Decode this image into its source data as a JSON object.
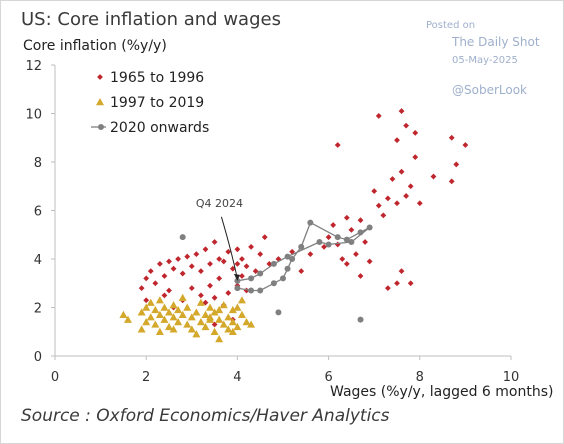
{
  "title": "US: Core inflation and wages",
  "source": "Source : Oxford Economics/Haver Analytics",
  "watermark": {
    "posted_on": "Posted on",
    "site": "The Daily Shot",
    "date": "05-May-2025",
    "handle": "@SoberLook"
  },
  "colors": {
    "series_1965_1996": "#c0262d",
    "series_1997_2019": "#d4a82a",
    "series_2020": "#808080",
    "axis": "#bfbfbf"
  },
  "chart_data": {
    "type": "scatter",
    "title": "US: Core inflation and wages",
    "xlabel": "Wages (%y/y, lagged 6 months)",
    "ylabel": "Core inflation (%y/y)",
    "xlim": [
      0,
      10
    ],
    "ylim": [
      0,
      12
    ],
    "xticks": [
      0,
      2,
      4,
      6,
      8,
      10
    ],
    "yticks": [
      0,
      2,
      4,
      6,
      8,
      10,
      12
    ],
    "grid": false,
    "legend_position": "top-left",
    "annotation": {
      "text": "Q4 2024",
      "target": [
        4.0,
        3.1
      ]
    },
    "series": [
      {
        "name": "1965 to 1996",
        "marker": "diamond",
        "points": [
          [
            1.9,
            2.8
          ],
          [
            2.0,
            3.2
          ],
          [
            2.0,
            2.3
          ],
          [
            2.1,
            3.5
          ],
          [
            2.2,
            3.0
          ],
          [
            2.3,
            3.8
          ],
          [
            2.4,
            3.3
          ],
          [
            2.4,
            2.5
          ],
          [
            2.5,
            2.7
          ],
          [
            2.5,
            3.9
          ],
          [
            2.6,
            3.6
          ],
          [
            2.6,
            2.0
          ],
          [
            2.7,
            4.0
          ],
          [
            2.8,
            3.4
          ],
          [
            2.8,
            2.3
          ],
          [
            2.9,
            4.1
          ],
          [
            3.0,
            3.7
          ],
          [
            3.0,
            2.8
          ],
          [
            3.1,
            4.2
          ],
          [
            3.2,
            2.5
          ],
          [
            3.2,
            3.5
          ],
          [
            3.3,
            4.4
          ],
          [
            3.3,
            2.2
          ],
          [
            3.4,
            2.9
          ],
          [
            3.4,
            3.8
          ],
          [
            3.5,
            1.3
          ],
          [
            3.5,
            2.4
          ],
          [
            3.5,
            4.7
          ],
          [
            3.6,
            4.0
          ],
          [
            3.6,
            3.2
          ],
          [
            3.7,
            2.1
          ],
          [
            3.7,
            3.9
          ],
          [
            3.8,
            4.3
          ],
          [
            3.8,
            2.6
          ],
          [
            3.9,
            3.6
          ],
          [
            3.9,
            1.5
          ],
          [
            4.0,
            4.4
          ],
          [
            4.0,
            3.8
          ],
          [
            4.0,
            2.9
          ],
          [
            4.1,
            3.3
          ],
          [
            4.1,
            4.0
          ],
          [
            4.2,
            2.7
          ],
          [
            4.2,
            3.7
          ],
          [
            4.3,
            4.5
          ],
          [
            4.4,
            3.5
          ],
          [
            4.5,
            4.2
          ],
          [
            4.6,
            4.9
          ],
          [
            4.7,
            3.8
          ],
          [
            4.9,
            4.0
          ],
          [
            5.2,
            4.3
          ],
          [
            5.4,
            3.5
          ],
          [
            5.6,
            4.2
          ],
          [
            5.9,
            4.5
          ],
          [
            6.0,
            4.9
          ],
          [
            6.1,
            5.4
          ],
          [
            6.2,
            4.6
          ],
          [
            6.3,
            4.0
          ],
          [
            6.4,
            5.7
          ],
          [
            6.5,
            5.2
          ],
          [
            6.6,
            4.2
          ],
          [
            6.7,
            5.6
          ],
          [
            6.8,
            4.7
          ],
          [
            6.9,
            3.9
          ],
          [
            7.0,
            6.8
          ],
          [
            7.1,
            6.2
          ],
          [
            7.2,
            5.8
          ],
          [
            7.3,
            6.5
          ],
          [
            7.4,
            7.3
          ],
          [
            7.5,
            6.3
          ],
          [
            7.6,
            7.6
          ],
          [
            7.7,
            6.6
          ],
          [
            7.8,
            7.0
          ],
          [
            7.9,
            8.2
          ],
          [
            7.1,
            9.9
          ],
          [
            7.6,
            10.1
          ],
          [
            7.7,
            9.5
          ],
          [
            7.9,
            9.2
          ],
          [
            7.5,
            8.9
          ],
          [
            8.3,
            7.4
          ],
          [
            8.7,
            9.0
          ],
          [
            9.0,
            8.7
          ],
          [
            8.8,
            7.9
          ],
          [
            6.2,
            8.7
          ],
          [
            6.7,
            3.3
          ],
          [
            7.3,
            2.8
          ],
          [
            7.5,
            3.0
          ],
          [
            7.6,
            3.5
          ],
          [
            7.8,
            3.0
          ],
          [
            8.0,
            6.3
          ],
          [
            8.7,
            7.2
          ],
          [
            6.4,
            3.8
          ]
        ]
      },
      {
        "name": "1997 to 2019",
        "marker": "triangle",
        "points": [
          [
            1.5,
            1.7
          ],
          [
            1.6,
            1.5
          ],
          [
            1.9,
            1.8
          ],
          [
            2.0,
            2.0
          ],
          [
            2.0,
            1.4
          ],
          [
            2.1,
            1.6
          ],
          [
            2.1,
            2.2
          ],
          [
            2.2,
            1.9
          ],
          [
            2.2,
            1.3
          ],
          [
            2.3,
            1.7
          ],
          [
            2.3,
            2.3
          ],
          [
            2.4,
            1.5
          ],
          [
            2.4,
            2.0
          ],
          [
            2.5,
            1.8
          ],
          [
            2.5,
            1.2
          ],
          [
            2.6,
            2.1
          ],
          [
            2.6,
            1.6
          ],
          [
            2.7,
            1.4
          ],
          [
            2.7,
            1.9
          ],
          [
            2.8,
            2.4
          ],
          [
            2.8,
            1.7
          ],
          [
            2.9,
            1.3
          ],
          [
            2.9,
            2.0
          ],
          [
            3.0,
            1.6
          ],
          [
            3.0,
            1.1
          ],
          [
            3.1,
            1.8
          ],
          [
            3.2,
            2.2
          ],
          [
            3.2,
            1.4
          ],
          [
            3.3,
            1.7
          ],
          [
            3.3,
            1.2
          ],
          [
            3.4,
            2.0
          ],
          [
            3.4,
            1.5
          ],
          [
            3.5,
            1.8
          ],
          [
            3.5,
            1.0
          ],
          [
            3.6,
            1.5
          ],
          [
            3.6,
            0.7
          ],
          [
            3.7,
            1.3
          ],
          [
            3.7,
            2.1
          ],
          [
            3.8,
            1.6
          ],
          [
            3.8,
            1.1
          ],
          [
            3.9,
            1.9
          ],
          [
            3.9,
            1.4
          ],
          [
            4.0,
            2.0
          ],
          [
            4.0,
            1.2
          ],
          [
            4.1,
            2.3
          ],
          [
            4.1,
            1.7
          ],
          [
            4.2,
            1.4
          ],
          [
            4.3,
            1.3
          ],
          [
            1.9,
            1.1
          ],
          [
            2.3,
            1.0
          ],
          [
            2.6,
            1.1
          ],
          [
            3.1,
            0.9
          ],
          [
            3.4,
            1.6
          ],
          [
            3.6,
            1.9
          ],
          [
            3.9,
            1.0
          ]
        ]
      },
      {
        "name": "2020 onwards",
        "marker": "circle",
        "connected": true,
        "points": [
          [
            4.0,
            2.8
          ],
          [
            4.3,
            2.7
          ],
          [
            4.5,
            2.7
          ],
          [
            4.8,
            3.0
          ],
          [
            5.0,
            3.2
          ],
          [
            5.1,
            3.6
          ],
          [
            5.2,
            4.0
          ],
          [
            5.4,
            4.5
          ],
          [
            5.6,
            5.5
          ],
          [
            6.2,
            4.9
          ],
          [
            6.4,
            4.8
          ],
          [
            6.7,
            5.1
          ],
          [
            6.9,
            5.3
          ],
          [
            6.5,
            4.7
          ],
          [
            6.0,
            4.6
          ],
          [
            5.8,
            4.7
          ],
          [
            5.1,
            4.1
          ],
          [
            4.8,
            3.8
          ],
          [
            4.5,
            3.4
          ],
          [
            4.3,
            3.2
          ],
          [
            4.0,
            3.1
          ]
        ],
        "extra_points": [
          [
            2.8,
            4.9
          ],
          [
            4.9,
            1.8
          ],
          [
            6.7,
            1.5
          ]
        ]
      }
    ]
  }
}
